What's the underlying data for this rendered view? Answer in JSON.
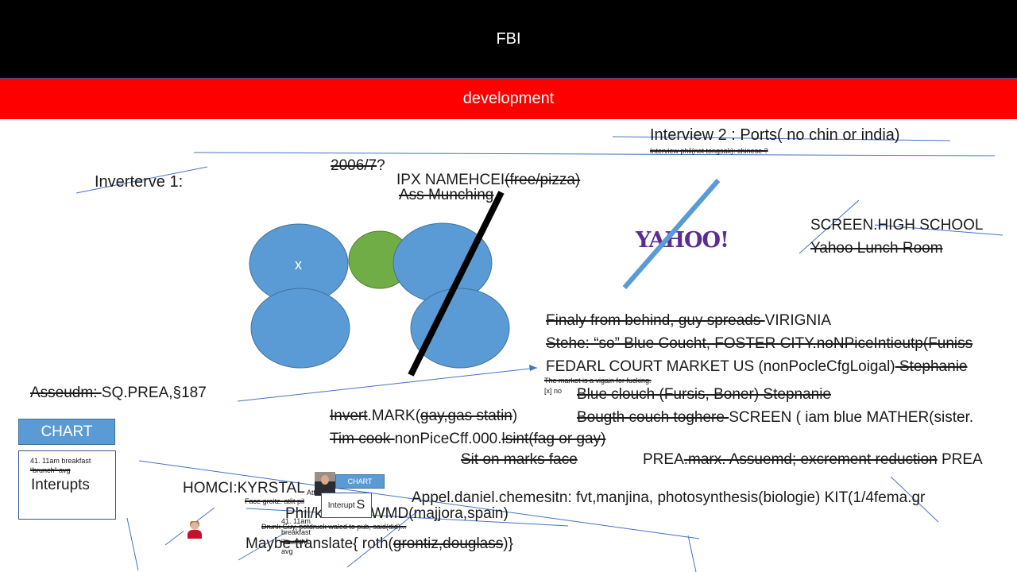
{
  "header": {
    "title": "FBI",
    "subtitle": "development"
  },
  "notes": {
    "interview2": "Interview 2 : Ports( no chin or india)",
    "interview_phil": "Interview phil(not tongsak): chinese ?",
    "year_struck": "2006/7",
    "year_q": "?",
    "interview1": "Inverterve 1:",
    "ipx": "IPX NAMEHCEI",
    "ipx_struck": "(free/pizza)",
    "ass": "Ass Munching",
    "circle_x": "x",
    "yahoo_logo": "YAHOO!",
    "screen_hs": "SCREEN.HIGH SCHOOL",
    "yahoo_lunch": "Yahoo Lunch Room",
    "finaly_struck": "Finaly from behind, guy spreads ",
    "finaly_end": "VIRIGNIA",
    "stehe": "Stehe: “so” Blue Coucht, FOSTER CITY.noNPiceIntieutp(Funiss",
    "fedarl": "FEDARL COURT MARKET US (nonPocleCfgLoigal)",
    "fedarl_struck": " Stephanie",
    "market_small": "The market is a vigain for fucking.",
    "x_no": "[x] no",
    "blue_clouch": "Blue clouch (Fursis, Boner) Stepnanie",
    "bougth_struck": "Bougth couch toghere ",
    "bougth_end": "SCREEN ( iam blue MATHER(sister.",
    "asseudm_struck": "Asseudm: ",
    "asseudm_end": "SQ.PREA,§187",
    "invert_struck": "Invert",
    "invert_mid": ".MARK(",
    "invert_struck2": "gay,gas statin",
    "invert_end": ")",
    "tim_struck": "Tim cook ",
    "tim_mid": "nonPiceCff.000.",
    "tim_struck2": "lsint(fag or gay)",
    "sit": "Sit on marks face",
    "prea": "PREA",
    "prea_struck": ".marx. Assuemd; excrement reduction",
    "prea_end": " PREA",
    "homci": "HOMCI:KYRSTAL",
    "face_small": "Face groitz. atlit pil",
    "appel": "Appel.daniel.chemesitn:  fvt,manjina, photosynthesis(biologie) KIT(1/4fema.gr",
    "phil": "Phil/kim:PBI.WMD(majjora,spain)",
    "drunk_small": "Drunk Guy, potdruck waled to pub, said(did)...",
    "maybe": "Maybe translate{ roth(",
    "maybe_struck": "grontiz,douglass",
    "maybe_end": ")}"
  },
  "chart_button": "CHART",
  "interrupts_card": {
    "line1": "41. 11am breakfast",
    "line2": "“brunch” avg",
    "big": "Interupts"
  },
  "mini_chart_button": "CHART",
  "mini_interrupts": {
    "prefix": "Interupt",
    "suffix": "S"
  },
  "mini_small": {
    "a": "Att",
    "b": "41. 11am",
    "c": "breakfast",
    "d": "“brunch”",
    "e": "avg"
  },
  "colors": {
    "circle_blue": "#5b9bd5",
    "circle_green": "#70ad47",
    "banner_red": "#ff0000",
    "yahoo_purple": "#5c2d91"
  }
}
